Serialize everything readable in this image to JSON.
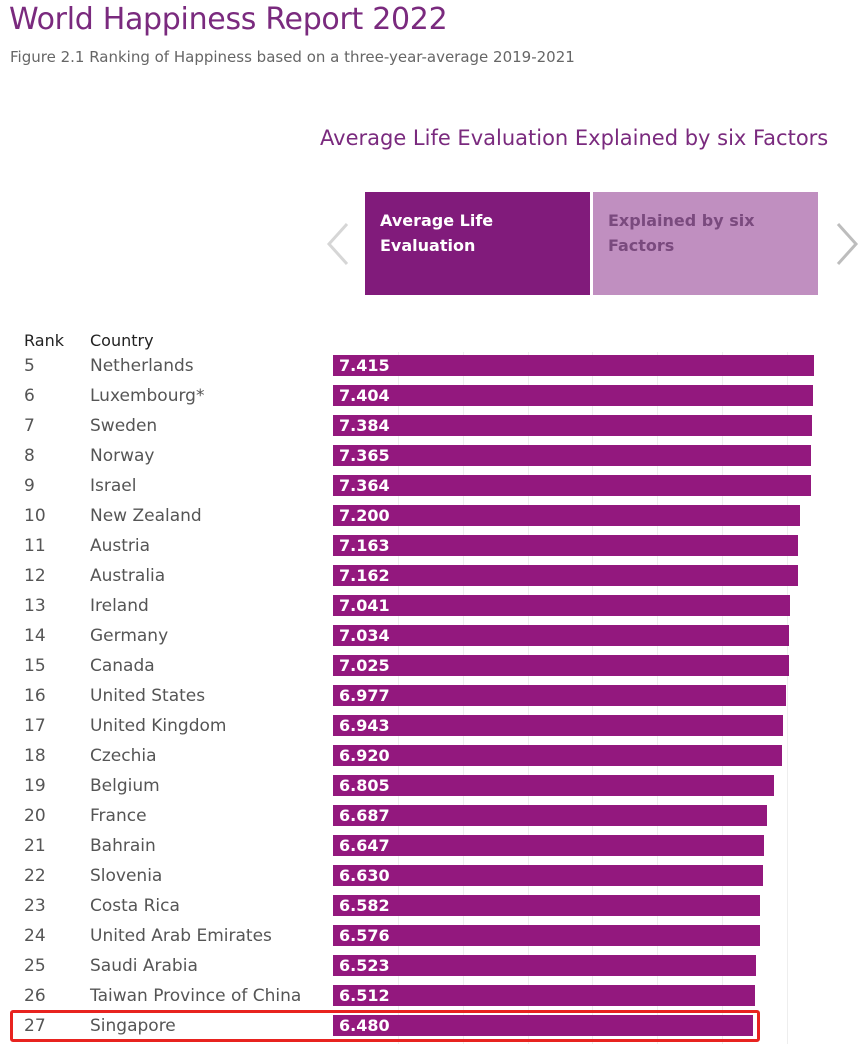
{
  "header": {
    "title": "World Happiness Report 2022",
    "subtitle": "Figure 2.1 Ranking of Happiness based on a three-year-average 2019-2021"
  },
  "chart_heading": "Average Life Evaluation Explained by six Factors",
  "tabs": [
    {
      "label": "Average Life Evaluation",
      "active": true
    },
    {
      "label": "Explained by six Factors",
      "active": false
    }
  ],
  "columns": {
    "rank": "Rank",
    "country": "Country"
  },
  "colors": {
    "bar": "#93187e",
    "accent": "#7a2a7e",
    "highlight": "#e8231f"
  },
  "chart_data": {
    "type": "bar",
    "orientation": "horizontal",
    "highlighted_country": "Singapore",
    "rows": [
      {
        "rank": "5",
        "country": "Netherlands",
        "value": 7.415,
        "label": "7.415"
      },
      {
        "rank": "6",
        "country": "Luxembourg*",
        "value": 7.404,
        "label": "7.404"
      },
      {
        "rank": "7",
        "country": "Sweden",
        "value": 7.384,
        "label": "7.384"
      },
      {
        "rank": "8",
        "country": "Norway",
        "value": 7.365,
        "label": "7.365"
      },
      {
        "rank": "9",
        "country": "Israel",
        "value": 7.364,
        "label": "7.364"
      },
      {
        "rank": "10",
        "country": "New Zealand",
        "value": 7.2,
        "label": "7.200"
      },
      {
        "rank": "11",
        "country": "Austria",
        "value": 7.163,
        "label": "7.163"
      },
      {
        "rank": "12",
        "country": "Australia",
        "value": 7.162,
        "label": "7.162"
      },
      {
        "rank": "13",
        "country": "Ireland",
        "value": 7.041,
        "label": "7.041"
      },
      {
        "rank": "14",
        "country": "Germany",
        "value": 7.034,
        "label": "7.034"
      },
      {
        "rank": "15",
        "country": "Canada",
        "value": 7.025,
        "label": "7.025"
      },
      {
        "rank": "16",
        "country": "United States",
        "value": 6.977,
        "label": "6.977"
      },
      {
        "rank": "17",
        "country": "United Kingdom",
        "value": 6.943,
        "label": "6.943"
      },
      {
        "rank": "18",
        "country": "Czechia",
        "value": 6.92,
        "label": "6.920"
      },
      {
        "rank": "19",
        "country": "Belgium",
        "value": 6.805,
        "label": "6.805"
      },
      {
        "rank": "20",
        "country": "France",
        "value": 6.687,
        "label": "6.687"
      },
      {
        "rank": "21",
        "country": "Bahrain",
        "value": 6.647,
        "label": "6.647"
      },
      {
        "rank": "22",
        "country": "Slovenia",
        "value": 6.63,
        "label": "6.630"
      },
      {
        "rank": "23",
        "country": "Costa Rica",
        "value": 6.582,
        "label": "6.582"
      },
      {
        "rank": "24",
        "country": "United Arab Emirates",
        "value": 6.576,
        "label": "6.576"
      },
      {
        "rank": "25",
        "country": "Saudi Arabia",
        "value": 6.523,
        "label": "6.523"
      },
      {
        "rank": "26",
        "country": "Taiwan Province of China",
        "value": 6.512,
        "label": "6.512"
      },
      {
        "rank": "27",
        "country": "Singapore",
        "value": 6.48,
        "label": "6.480"
      }
    ]
  }
}
